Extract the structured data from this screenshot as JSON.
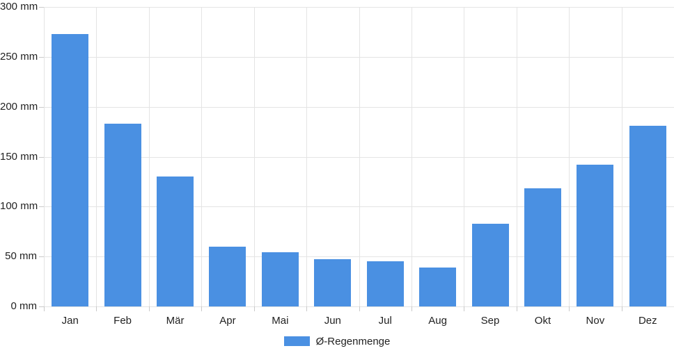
{
  "chart_data": {
    "type": "bar",
    "title": "",
    "xlabel": "",
    "ylabel": "",
    "unit": "mm",
    "categories": [
      "Jan",
      "Feb",
      "Mär",
      "Apr",
      "Mai",
      "Jun",
      "Jul",
      "Aug",
      "Sep",
      "Okt",
      "Nov",
      "Dez"
    ],
    "series": [
      {
        "name": "Ø-Regenmenge",
        "values": [
          273,
          183,
          130,
          60,
          54,
          47,
          45,
          39,
          83,
          118,
          142,
          181
        ]
      }
    ],
    "ylim": [
      0,
      300
    ],
    "y_tick_step": 50,
    "y_tick_labels": [
      "0 mm",
      "50 mm",
      "100 mm",
      "150 mm",
      "200 mm",
      "250 mm",
      "300 mm"
    ],
    "grid": true,
    "legend_position": "bottom",
    "colors": {
      "bar": "#4a90e2",
      "grid": "#e4e4e4",
      "tick": "#c9c9c9",
      "text": "#222222",
      "background": "#ffffff"
    }
  }
}
